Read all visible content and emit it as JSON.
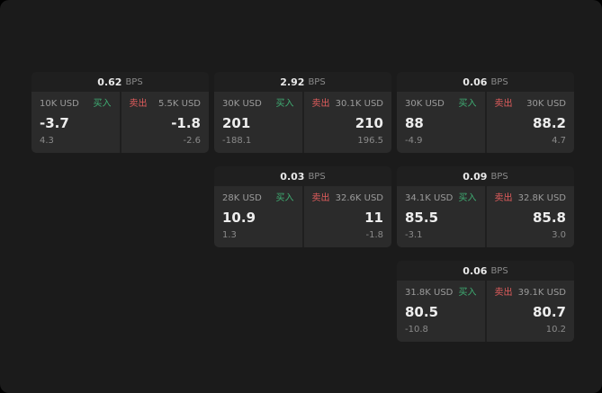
{
  "labels": {
    "buy": "买入",
    "sell": "卖出",
    "bps": "BPS"
  },
  "colors": {
    "buy": "#3fae73",
    "sell": "#e25d5d",
    "background": "#1b1b1b",
    "panel": "#2b2b2b"
  },
  "cards": [
    {
      "spread": "0.62",
      "buy": {
        "amount": "10K USD",
        "price": "-3.7",
        "delta": "4.3"
      },
      "sell": {
        "amount": "5.5K USD",
        "price": "-1.8",
        "delta": "-2.6"
      }
    },
    {
      "spread": "2.92",
      "buy": {
        "amount": "30K USD",
        "price": "201",
        "delta": "-188.1"
      },
      "sell": {
        "amount": "30.1K USD",
        "price": "210",
        "delta": "196.5"
      }
    },
    {
      "spread": "0.06",
      "buy": {
        "amount": "30K USD",
        "price": "88",
        "delta": "-4.9"
      },
      "sell": {
        "amount": "30K USD",
        "price": "88.2",
        "delta": "4.7"
      }
    },
    {
      "spread": "0.03",
      "buy": {
        "amount": "28K USD",
        "price": "10.9",
        "delta": "1.3"
      },
      "sell": {
        "amount": "32.6K USD",
        "price": "11",
        "delta": "-1.8"
      }
    },
    {
      "spread": "0.09",
      "buy": {
        "amount": "34.1K USD",
        "price": "85.5",
        "delta": "-3.1"
      },
      "sell": {
        "amount": "32.8K USD",
        "price": "85.8",
        "delta": "3.0"
      }
    },
    {
      "spread": "0.06",
      "buy": {
        "amount": "31.8K USD",
        "price": "80.5",
        "delta": "-10.8"
      },
      "sell": {
        "amount": "39.1K USD",
        "price": "80.7",
        "delta": "10.2"
      }
    }
  ]
}
